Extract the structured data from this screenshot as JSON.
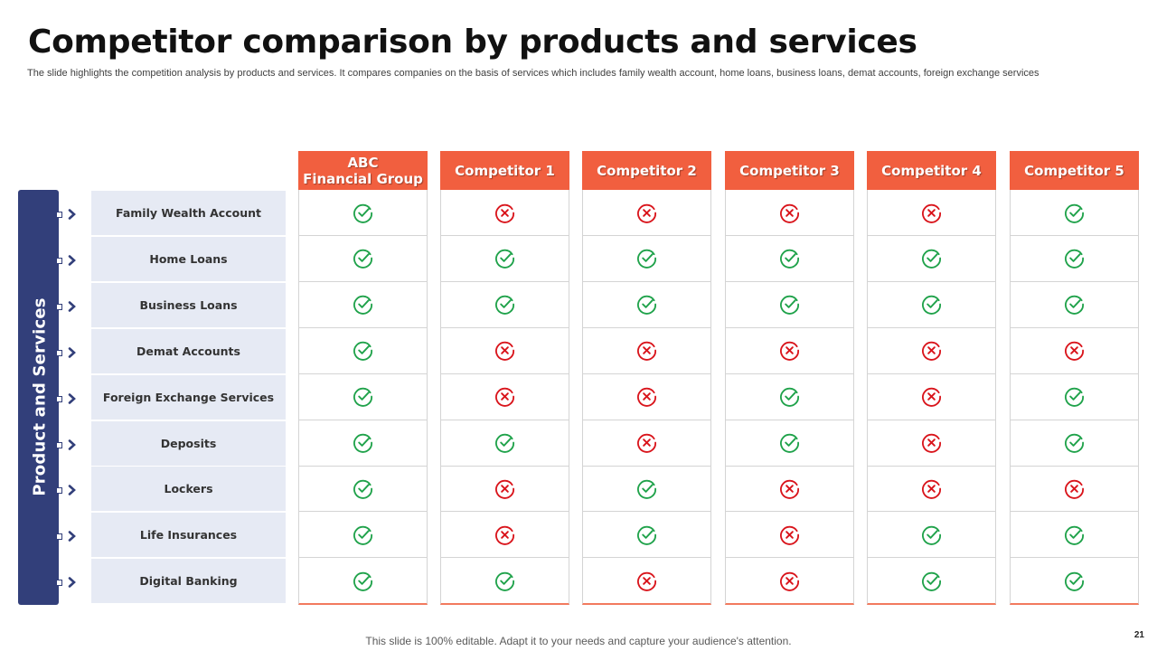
{
  "title": "Competitor comparison by products and services",
  "subtitle": "The slide highlights the competition analysis by products and services. It compares companies on the basis of services which includes family wealth account, home loans, business loans, demat accounts, foreign exchange services",
  "side_label": "Product and Services",
  "colors": {
    "header": "#f15f3f",
    "sidebar": "#323f7a",
    "row_bg": "#e6eaf4",
    "check": "#1fa24a",
    "cross": "#d9141b"
  },
  "columns": [
    "ABC\nFinancial Group",
    "Competitor 1",
    "Competitor 2",
    "Competitor 3",
    "Competitor 4",
    "Competitor 5"
  ],
  "rows": [
    {
      "label": "Family Wealth Account",
      "values": [
        "check",
        "cross",
        "cross",
        "cross",
        "cross",
        "check"
      ]
    },
    {
      "label": "Home Loans",
      "values": [
        "check",
        "check",
        "check",
        "check",
        "check",
        "check"
      ]
    },
    {
      "label": "Business Loans",
      "values": [
        "check",
        "check",
        "check",
        "check",
        "check",
        "check"
      ]
    },
    {
      "label": "Demat Accounts",
      "values": [
        "check",
        "cross",
        "cross",
        "cross",
        "cross",
        "cross"
      ]
    },
    {
      "label": "Foreign Exchange Services",
      "values": [
        "check",
        "cross",
        "cross",
        "check",
        "cross",
        "check"
      ]
    },
    {
      "label": "Deposits",
      "values": [
        "check",
        "check",
        "cross",
        "check",
        "cross",
        "check"
      ]
    },
    {
      "label": "Lockers",
      "values": [
        "check",
        "cross",
        "check",
        "cross",
        "cross",
        "cross"
      ]
    },
    {
      "label": "Life Insurances",
      "values": [
        "check",
        "cross",
        "check",
        "cross",
        "check",
        "check"
      ]
    },
    {
      "label": "Digital Banking",
      "values": [
        "check",
        "check",
        "cross",
        "cross",
        "check",
        "check"
      ]
    }
  ],
  "footer": "This slide is 100% editable. Adapt it to your needs and capture your audience's attention.",
  "page_number": "21"
}
